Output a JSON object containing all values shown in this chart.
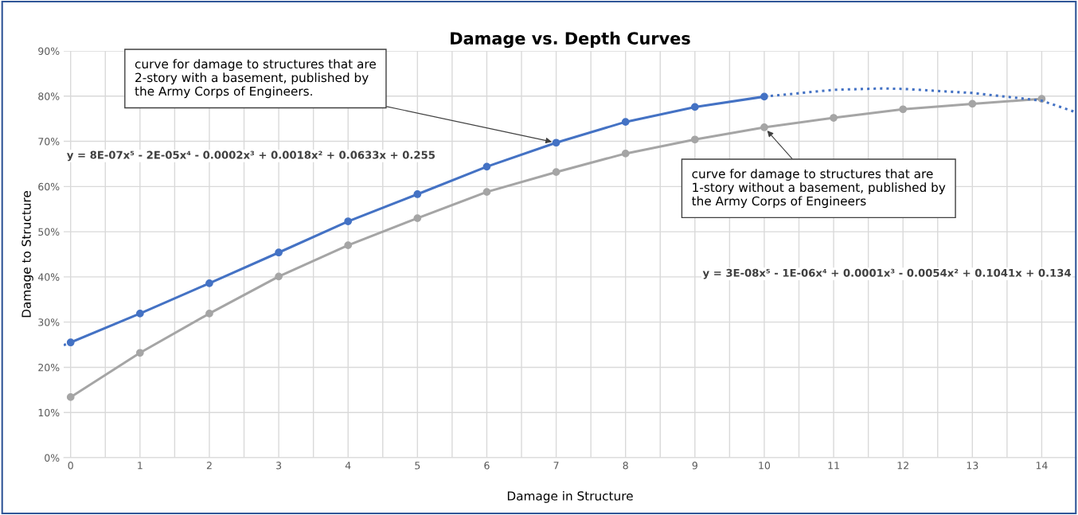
{
  "chart_data": {
    "type": "line",
    "title": "Damage vs. Depth Curves",
    "xlabel": "Damage in Structure",
    "ylabel": "Damage to Structure",
    "xlim": [
      -0.1,
      14.5
    ],
    "xticks": [
      0,
      1,
      2,
      3,
      4,
      5,
      6,
      7,
      8,
      9,
      10,
      11,
      12,
      13,
      14
    ],
    "ylim": [
      0,
      90
    ],
    "yticks": [
      {
        "value": 0,
        "label": "0%"
      },
      {
        "value": 10,
        "label": "10%"
      },
      {
        "value": 20,
        "label": "20%"
      },
      {
        "value": 30,
        "label": "30%"
      },
      {
        "value": 40,
        "label": "40%"
      },
      {
        "value": 50,
        "label": "50%"
      },
      {
        "value": 60,
        "label": "60%"
      },
      {
        "value": 70,
        "label": "70%"
      },
      {
        "value": 80,
        "label": "80%"
      },
      {
        "value": 90,
        "label": "90%"
      }
    ],
    "grid": true,
    "marker": "circle",
    "series": [
      {
        "color": "#4472c4",
        "x": [
          0,
          1,
          2,
          3,
          4,
          5,
          6,
          7,
          8,
          9,
          10
        ],
        "values": [
          25.5,
          31.9,
          38.6,
          45.4,
          52.3,
          58.3,
          64.4,
          69.7,
          74.3,
          77.6,
          79.9
        ]
      },
      {
        "color": "#a5a5a5",
        "x": [
          0,
          1,
          2,
          3,
          4,
          5,
          6,
          7,
          8,
          9,
          10,
          11,
          12,
          13,
          14
        ],
        "values": [
          13.4,
          23.2,
          31.9,
          40.1,
          47.0,
          53.0,
          58.8,
          63.2,
          67.3,
          70.4,
          73.1,
          75.2,
          77.1,
          78.3,
          79.4
        ]
      },
      {
        "color": "#4472c4",
        "line_style": "dotted",
        "marker": "none",
        "x": [
          -0.1,
          0,
          5,
          10,
          11,
          11.7,
          12,
          13,
          14,
          14.5
        ],
        "values": [
          24.9,
          25.5,
          null,
          79.9,
          81.4,
          81.7,
          81.6,
          80.7,
          79.0,
          76.4
        ]
      }
    ],
    "annotations": [
      {
        "text": "curve for damage to structures that are 2-story with a basement, published by the Army Corps of Engineers.",
        "x": 7,
        "y": 69.7
      },
      {
        "text": "curve for damage to structures that are 1-story without a basement, published by the Army Corps of Engineers",
        "x": 10,
        "y": 73.1
      },
      "y = 8E-07x⁵ - 2E-05x⁴ - 0.0002x³ + 0.0018x² + 0.0633x + 0.255",
      "y = 3E-08x⁵ - 1E-06x⁴ + 0.0001x³ - 0.0054x² + 0.1041x + 0.134"
    ]
  }
}
